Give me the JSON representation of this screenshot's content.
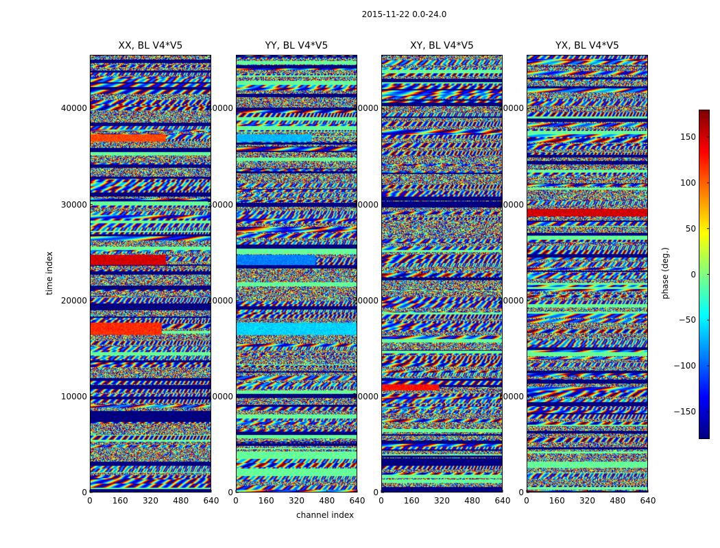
{
  "suptitle": "2015-11-22 0.0-24.0",
  "chart_data": {
    "type": "heatmap",
    "panels": [
      {
        "title": "XX, BL V4*V5"
      },
      {
        "title": "YY, BL V4*V5"
      },
      {
        "title": "XY, BL V4*V5"
      },
      {
        "title": "YX, BL V4*V5"
      }
    ],
    "xlabel": "channel index",
    "ylabel": "time index",
    "xlim": [
      0,
      640
    ],
    "ylim": [
      0,
      45600
    ],
    "xticks": [
      0,
      160,
      320,
      480,
      640
    ],
    "yticks": [
      0,
      10000,
      20000,
      30000,
      40000
    ],
    "colorbar": {
      "label": "phase (deg.)",
      "range": [
        -180,
        180
      ],
      "ticks": [
        -150,
        -100,
        -50,
        0,
        50,
        100,
        150
      ],
      "colormap": "jet"
    },
    "notable_bands": [
      {
        "panel": "XX, BL V4*V5",
        "time_range": [
          23700,
          24800
        ],
        "channel_range": [
          0,
          400
        ],
        "phase": 150
      },
      {
        "panel": "XX, BL V4*V5",
        "time_range": [
          16400,
          17700
        ],
        "channel_range": [
          0,
          380
        ],
        "phase": 120
      },
      {
        "panel": "XX, BL V4*V5",
        "time_range": [
          36600,
          37400
        ],
        "channel_range": [
          0,
          400
        ],
        "phase": 110
      },
      {
        "panel": "YY, BL V4*V5",
        "time_range": [
          23700,
          24800
        ],
        "channel_range": [
          0,
          420
        ],
        "phase": -90
      },
      {
        "panel": "YY, BL V4*V5",
        "time_range": [
          16400,
          17700
        ],
        "channel_range": [
          0,
          640
        ],
        "phase": -60
      },
      {
        "panel": "YY, BL V4*V5",
        "time_range": [
          36600,
          37400
        ],
        "channel_range": [
          0,
          400
        ],
        "phase": -70
      },
      {
        "panel": "XY, BL V4*V5",
        "time_range": [
          10600,
          11300
        ],
        "channel_range": [
          0,
          300
        ],
        "phase": 130
      },
      {
        "panel": "YX, BL V4*V5",
        "time_range": [
          28800,
          29600
        ],
        "channel_range": [
          0,
          640
        ],
        "phase": 150
      }
    ]
  }
}
